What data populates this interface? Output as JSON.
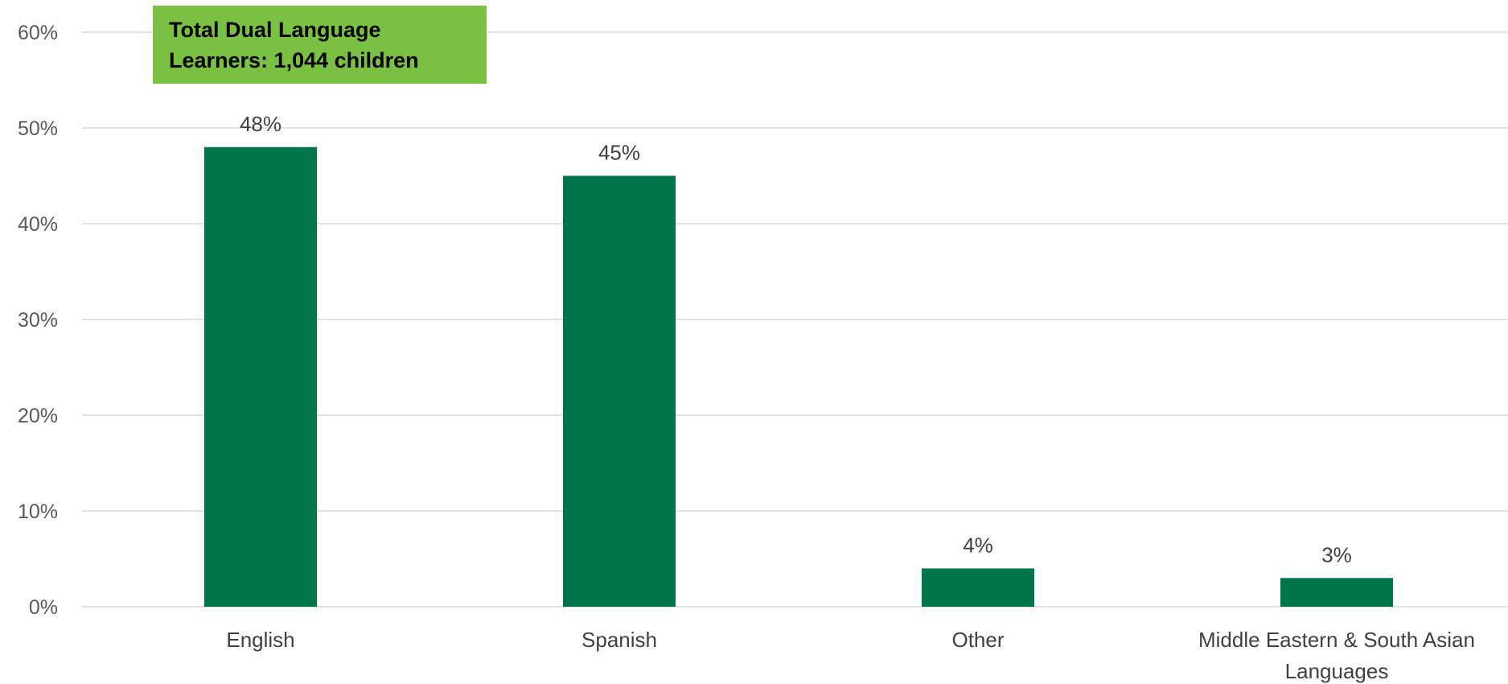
{
  "chart_data": {
    "type": "bar",
    "categories": [
      "English",
      "Spanish",
      "Other",
      "Middle Eastern & South Asian Languages"
    ],
    "category_label_lines": [
      [
        "English"
      ],
      [
        "Spanish"
      ],
      [
        "Other"
      ],
      [
        "Middle Eastern & South Asian",
        "Languages"
      ]
    ],
    "values": [
      48,
      45,
      4,
      3
    ],
    "data_labels": [
      "48%",
      "45%",
      "4%",
      "3%"
    ],
    "ylim": [
      0,
      60
    ],
    "y_ticks": [
      0,
      10,
      20,
      30,
      40,
      50,
      60
    ],
    "y_tick_labels": [
      "0%",
      "10%",
      "20%",
      "30%",
      "40%",
      "50%",
      "60%"
    ],
    "title": "",
    "xlabel": "",
    "ylabel": "",
    "grid": true,
    "bar_color": "#00754A",
    "gridline_color": "#D9D9D9",
    "annotation": {
      "lines": [
        "Total Dual Language",
        "Learners: 1,044 children"
      ],
      "background": "#7AC143"
    }
  }
}
